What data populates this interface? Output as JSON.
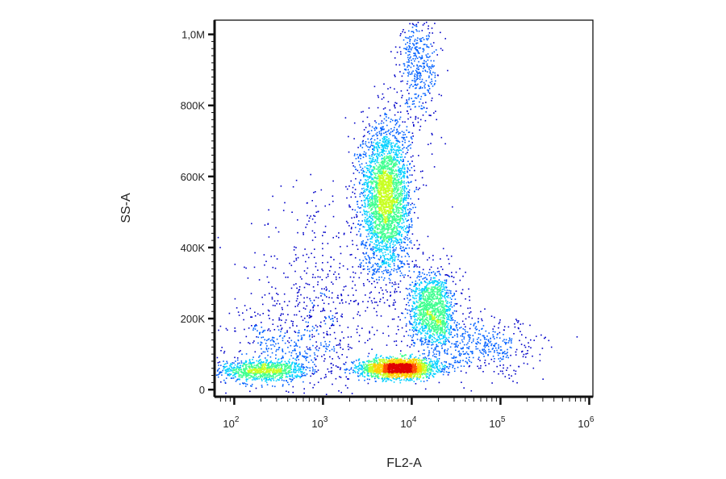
{
  "chart_data": {
    "type": "scatter",
    "style": "density-colored flow cytometry dot plot",
    "xlabel": "FL2-A",
    "ylabel": "SS-A",
    "x_scale": "log",
    "xlim": [
      60,
      1100000
    ],
    "ylim": [
      -20000,
      1040000
    ],
    "x_ticks": [
      {
        "value": 100,
        "base": "10",
        "exp": "2"
      },
      {
        "value": 1000,
        "base": "10",
        "exp": "3"
      },
      {
        "value": 10000,
        "base": "10",
        "exp": "4"
      },
      {
        "value": 100000,
        "base": "10",
        "exp": "5"
      },
      {
        "value": 1000000,
        "base": "10",
        "exp": "6"
      }
    ],
    "y_ticks": [
      {
        "value": 0,
        "label": "0"
      },
      {
        "value": 200000,
        "label": "200K"
      },
      {
        "value": 400000,
        "label": "400K"
      },
      {
        "value": 600000,
        "label": "600K"
      },
      {
        "value": 800000,
        "label": "800K"
      },
      {
        "value": 1000000,
        "label": "1,0M"
      }
    ],
    "populations": [
      {
        "x_center": 200,
        "y_center": 55000,
        "log_spread": 0.26,
        "y_spread": 15000,
        "weight": 0.1
      },
      {
        "x_center": 7000,
        "y_center": 62000,
        "log_spread": 0.22,
        "y_spread": 14000,
        "weight": 0.22
      },
      {
        "x_center": 5000,
        "y_center": 540000,
        "log_spread": 0.14,
        "y_spread": 105000,
        "weight": 0.33
      },
      {
        "x_center": 17000,
        "y_center": 225000,
        "log_spread": 0.13,
        "y_spread": 55000,
        "weight": 0.15
      },
      {
        "x_center": 12000,
        "y_center": 920000,
        "log_spread": 0.12,
        "y_spread": 90000,
        "weight": 0.05
      },
      {
        "x_center": 1000,
        "y_center": 260000,
        "log_spread": 0.45,
        "y_spread": 150000,
        "weight": 0.06
      },
      {
        "x_center": 60000,
        "y_center": 120000,
        "log_spread": 0.35,
        "y_spread": 40000,
        "weight": 0.05
      },
      {
        "x_center": 400,
        "y_center": 130000,
        "log_spread": 0.35,
        "y_spread": 60000,
        "weight": 0.04
      }
    ],
    "colormap": [
      "#0000c8",
      "#0060ff",
      "#00d0ff",
      "#40ff90",
      "#c8ff20",
      "#ffd000",
      "#ff5000",
      "#e00000"
    ],
    "grid": false,
    "legend": "none"
  }
}
